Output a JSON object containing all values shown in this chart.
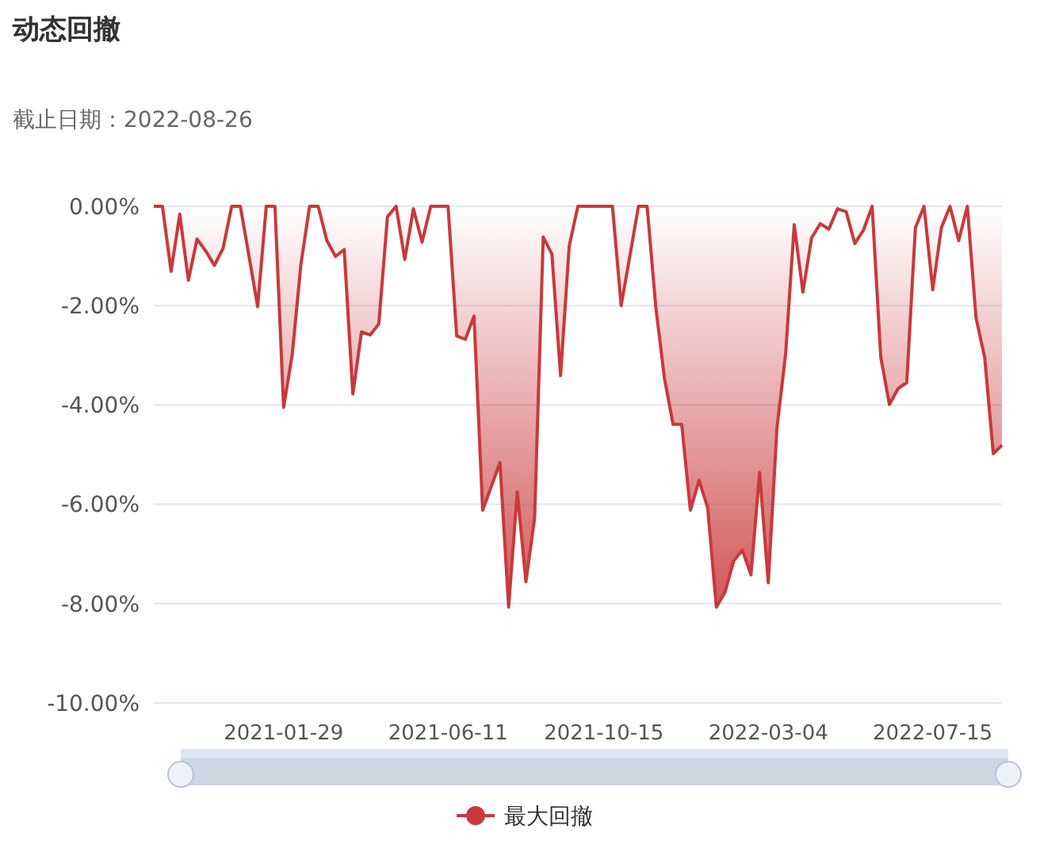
{
  "chart_data": {
    "type": "area",
    "title": "动态回撤",
    "subtitle": "截止日期：2022-08-26",
    "categories": [
      null,
      null,
      null,
      null,
      null,
      null,
      null,
      null,
      null,
      null,
      null,
      null,
      null,
      null,
      null,
      "2021-01-29",
      null,
      null,
      null,
      null,
      null,
      null,
      null,
      null,
      null,
      null,
      null,
      null,
      null,
      null,
      null,
      null,
      null,
      null,
      "2021-06-11",
      null,
      null,
      null,
      null,
      null,
      null,
      null,
      null,
      null,
      null,
      null,
      null,
      null,
      null,
      null,
      null,
      null,
      "2021-10-15",
      null,
      null,
      null,
      null,
      null,
      null,
      null,
      null,
      null,
      null,
      null,
      null,
      null,
      null,
      null,
      null,
      null,
      null,
      "2022-03-04",
      null,
      null,
      null,
      null,
      null,
      null,
      null,
      null,
      null,
      null,
      null,
      null,
      null,
      null,
      null,
      null,
      null,
      null,
      "2022-07-15",
      null,
      null,
      null,
      null,
      null,
      null,
      null,
      null
    ],
    "series": [
      {
        "name": "最大回撤",
        "color": "#c9393b",
        "values": [
          0,
          0,
          -1.31,
          -0.16,
          -1.49,
          -0.66,
          -0.9,
          -1.19,
          -0.85,
          0,
          0,
          -1.0,
          -2.02,
          0,
          0,
          -4.05,
          -2.98,
          -1.17,
          0,
          0,
          -0.69,
          -1.01,
          -0.87,
          -3.78,
          -2.53,
          -2.59,
          -2.37,
          -0.21,
          0,
          -1.07,
          -0.05,
          -0.72,
          0,
          0,
          0,
          -2.61,
          -2.68,
          -2.21,
          -6.12,
          -5.64,
          -5.16,
          -8.07,
          -5.75,
          -7.56,
          -6.28,
          -0.62,
          -0.96,
          -3.41,
          -0.8,
          0,
          0,
          0,
          0,
          0,
          -2.0,
          -1.01,
          0,
          0,
          -2.02,
          -3.46,
          -4.39,
          -4.39,
          -6.12,
          -5.52,
          -6.07,
          -8.07,
          -7.77,
          -7.14,
          -6.92,
          -7.42,
          -5.36,
          -7.58,
          -4.47,
          -2.98,
          -0.37,
          -1.73,
          -0.64,
          -0.35,
          -0.46,
          -0.05,
          -0.11,
          -0.75,
          -0.48,
          0,
          -3.04,
          -3.99,
          -3.67,
          -3.55,
          -0.43,
          0,
          -1.68,
          -0.43,
          0,
          -0.69,
          0,
          -2.24,
          -3.04,
          -4.98,
          -4.81
        ]
      }
    ],
    "ylim": [
      -10,
      0
    ],
    "yticks": [
      {
        "value": 0,
        "label": "0.00%"
      },
      {
        "value": -2,
        "label": "-2.00%"
      },
      {
        "value": -4,
        "label": "-4.00%"
      },
      {
        "value": -6,
        "label": "-6.00%"
      },
      {
        "value": -8,
        "label": "-8.00%"
      },
      {
        "value": -10,
        "label": "-10.00%"
      }
    ],
    "grid": "y",
    "legend": "bottom"
  }
}
